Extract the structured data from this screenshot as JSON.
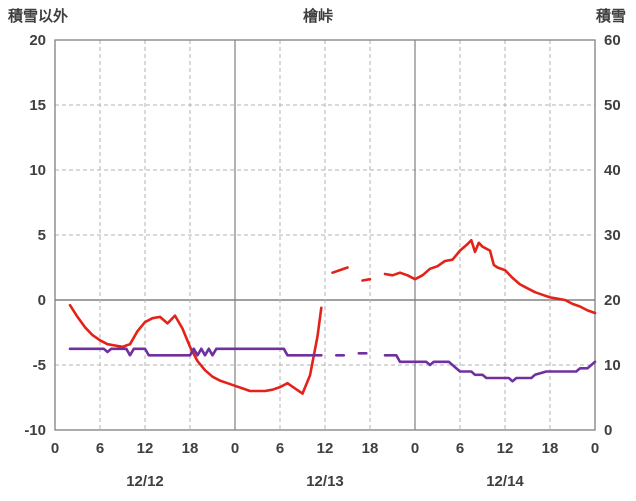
{
  "labels": {
    "left_axis_title": "積雪以外",
    "chart_title": "檜峠",
    "right_axis_title": "積雪"
  },
  "colors": {
    "red_series": "#e32219",
    "purple_series": "#7030a0",
    "grid_dashed": "#b3b3b3",
    "grid_solid": "#808080",
    "text": "#3f3f3f"
  },
  "chart_data": {
    "type": "line",
    "title": "檜峠",
    "left_axis": {
      "label": "積雪以外",
      "min": -10,
      "max": 20,
      "ticks": [
        20,
        15,
        10,
        5,
        0,
        -5,
        -10
      ]
    },
    "right_axis": {
      "label": "積雪",
      "min": 0,
      "max": 60,
      "ticks": [
        60,
        50,
        40,
        30,
        20,
        10,
        0
      ]
    },
    "x_axis": {
      "min": 0,
      "max": 72,
      "tick_interval_hours": 6,
      "tick_labels": [
        "0",
        "6",
        "12",
        "18",
        "0",
        "6",
        "12",
        "18",
        "0",
        "6",
        "12",
        "18",
        "0"
      ],
      "day_labels": [
        {
          "label": "12/12",
          "hour": 12
        },
        {
          "label": "12/13",
          "hour": 36
        },
        {
          "label": "12/14",
          "hour": 60
        }
      ],
      "grid": "dashed-6h-solid-24h"
    },
    "series": [
      {
        "id": "red-line",
        "axis": "left",
        "color": "#e32219",
        "segments": [
          [
            [
              2,
              -0.4
            ],
            [
              3,
              -1.3
            ],
            [
              4,
              -2.1
            ],
            [
              5,
              -2.7
            ],
            [
              6,
              -3.1
            ],
            [
              7,
              -3.4
            ],
            [
              8,
              -3.5
            ],
            [
              9,
              -3.6
            ],
            [
              10,
              -3.4
            ],
            [
              11,
              -2.4
            ],
            [
              12,
              -1.7
            ],
            [
              13,
              -1.4
            ],
            [
              14,
              -1.3
            ],
            [
              15,
              -1.8
            ],
            [
              16,
              -1.2
            ],
            [
              17,
              -2.2
            ],
            [
              18,
              -3.6
            ],
            [
              19,
              -4.7
            ],
            [
              20,
              -5.4
            ],
            [
              21,
              -5.9
            ],
            [
              22,
              -6.2
            ],
            [
              23,
              -6.4
            ],
            [
              24,
              -6.6
            ],
            [
              25,
              -6.8
            ],
            [
              26,
              -7.0
            ],
            [
              27,
              -7.0
            ],
            [
              28,
              -7.0
            ],
            [
              29,
              -6.9
            ],
            [
              30,
              -6.7
            ],
            [
              31,
              -6.4
            ],
            [
              32,
              -6.8
            ],
            [
              33,
              -7.2
            ],
            [
              34,
              -5.8
            ],
            [
              35,
              -2.8
            ],
            [
              35.5,
              -0.6
            ]
          ],
          [
            [
              37,
              2.1
            ],
            [
              38,
              2.3
            ],
            [
              39,
              2.5
            ]
          ],
          [
            [
              41,
              1.5
            ],
            [
              42,
              1.6
            ]
          ],
          [
            [
              44,
              2.0
            ],
            [
              45,
              1.9
            ],
            [
              46,
              2.1
            ],
            [
              47,
              1.9
            ],
            [
              48,
              1.6
            ],
            [
              49,
              1.9
            ],
            [
              50,
              2.4
            ],
            [
              51,
              2.6
            ],
            [
              52,
              3.0
            ],
            [
              53,
              3.1
            ],
            [
              54,
              3.8
            ],
            [
              55,
              4.3
            ],
            [
              55.5,
              4.6
            ],
            [
              56,
              3.7
            ],
            [
              56.5,
              4.4
            ],
            [
              57,
              4.1
            ],
            [
              58,
              3.8
            ],
            [
              58.5,
              2.7
            ],
            [
              59,
              2.5
            ],
            [
              60,
              2.3
            ],
            [
              61,
              1.7
            ],
            [
              62,
              1.2
            ],
            [
              63,
              0.9
            ],
            [
              64,
              0.6
            ],
            [
              65,
              0.4
            ],
            [
              66,
              0.2
            ],
            [
              67,
              0.1
            ],
            [
              68,
              0.0
            ],
            [
              69,
              -0.3
            ],
            [
              70,
              -0.5
            ],
            [
              71,
              -0.8
            ],
            [
              72,
              -1.0
            ]
          ]
        ]
      },
      {
        "id": "purple-line",
        "axis": "right",
        "color": "#7030a0",
        "segments": [
          [
            [
              2,
              12.5
            ],
            [
              6.5,
              12.5
            ],
            [
              7,
              12.0
            ],
            [
              7.5,
              12.5
            ],
            [
              9.5,
              12.5
            ],
            [
              10,
              11.5
            ],
            [
              10.5,
              12.5
            ],
            [
              12,
              12.5
            ],
            [
              12.5,
              11.5
            ],
            [
              18,
              11.5
            ],
            [
              18.5,
              12.5
            ],
            [
              19,
              11.5
            ],
            [
              19.5,
              12.5
            ],
            [
              20,
              11.5
            ],
            [
              20.5,
              12.5
            ],
            [
              21,
              11.5
            ],
            [
              21.5,
              12.5
            ],
            [
              23,
              12.5
            ],
            [
              30.5,
              12.5
            ],
            [
              31,
              11.5
            ],
            [
              35.5,
              11.5
            ]
          ],
          [
            [
              37.5,
              11.5
            ],
            [
              38.5,
              11.5
            ]
          ],
          [
            [
              40.5,
              11.8
            ],
            [
              41.5,
              11.8
            ]
          ],
          [
            [
              44,
              11.5
            ],
            [
              45.5,
              11.5
            ],
            [
              46,
              10.5
            ],
            [
              49.5,
              10.5
            ],
            [
              50,
              10.0
            ],
            [
              50.5,
              10.5
            ],
            [
              52.5,
              10.5
            ],
            [
              53,
              10.0
            ],
            [
              54,
              9.0
            ],
            [
              55.5,
              9.0
            ],
            [
              56,
              8.5
            ],
            [
              57,
              8.5
            ],
            [
              57.5,
              8.0
            ],
            [
              60.5,
              8.0
            ],
            [
              61,
              7.5
            ],
            [
              61.5,
              8.0
            ],
            [
              63.5,
              8.0
            ],
            [
              64,
              8.5
            ],
            [
              65.5,
              9.0
            ],
            [
              69.5,
              9.0
            ],
            [
              70,
              9.5
            ],
            [
              71,
              9.5
            ],
            [
              71.5,
              10.0
            ],
            [
              72,
              10.5
            ]
          ]
        ]
      }
    ]
  }
}
